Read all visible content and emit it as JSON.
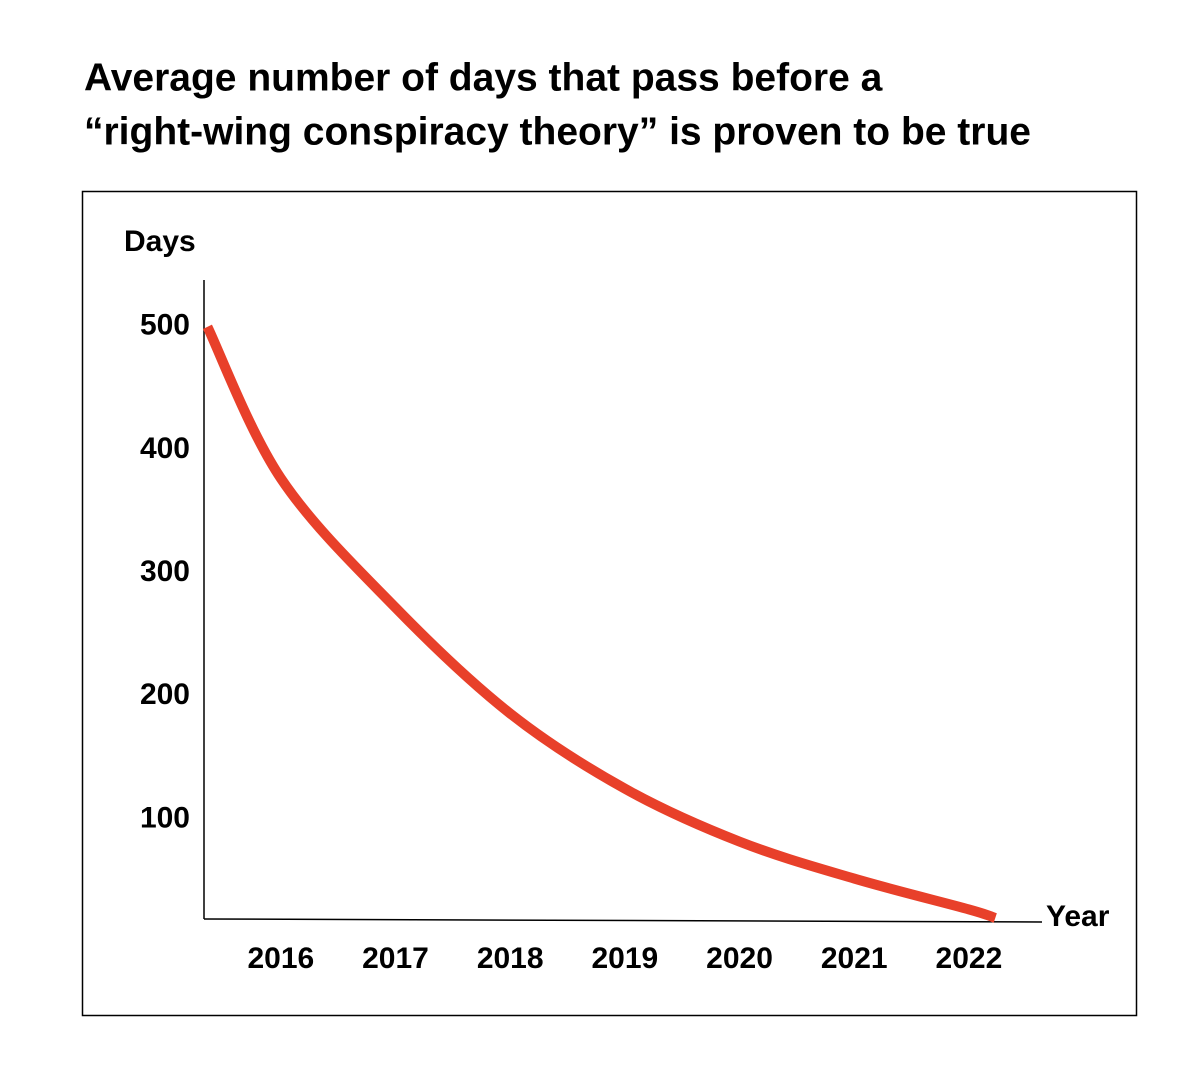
{
  "chart_data": {
    "type": "line",
    "title": [
      "Average number of days that pass before a",
      "“right-wing conspiracy theory” is proven to be true"
    ],
    "y_label": "Days",
    "x_label": "Year",
    "x": [
      2015.36,
      2016,
      2017,
      2018,
      2019,
      2020,
      2021,
      2022,
      2022.23
    ],
    "series": [
      {
        "color": "#e8402a",
        "values": [
          500,
          377,
          272,
          186,
          125,
          82,
          52,
          27,
          20
        ]
      }
    ],
    "xlim": [
      2015.33,
      2022.62
    ],
    "xticks": [
      2016,
      2017,
      2018,
      2019,
      2020,
      2021,
      2022
    ],
    "ylim": [
      20,
      538
    ],
    "yticks": [
      100,
      200,
      300,
      400,
      500
    ],
    "grid": false
  }
}
